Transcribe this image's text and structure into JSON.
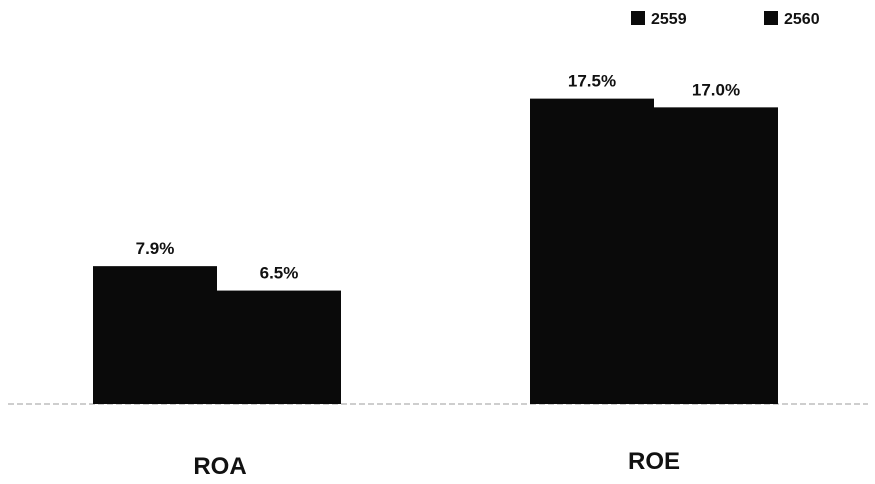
{
  "chart_data": {
    "type": "bar",
    "categories": [
      "ROA",
      "ROE"
    ],
    "series": [
      {
        "name": "2559",
        "values": [
          7.9,
          17.5
        ],
        "labels": [
          "7.9%",
          "17.5%"
        ]
      },
      {
        "name": "2560",
        "values": [
          6.5,
          17.0
        ],
        "labels": [
          "6.5%",
          "17.0%"
        ]
      }
    ],
    "ylim": [
      0,
      20
    ],
    "unit": "%",
    "grid": false,
    "legend_position": "top-right",
    "colors": {
      "bar": "#0a0a0a",
      "text": "#111111",
      "baseline": "#bdbdbd",
      "background": "#ffffff"
    }
  }
}
